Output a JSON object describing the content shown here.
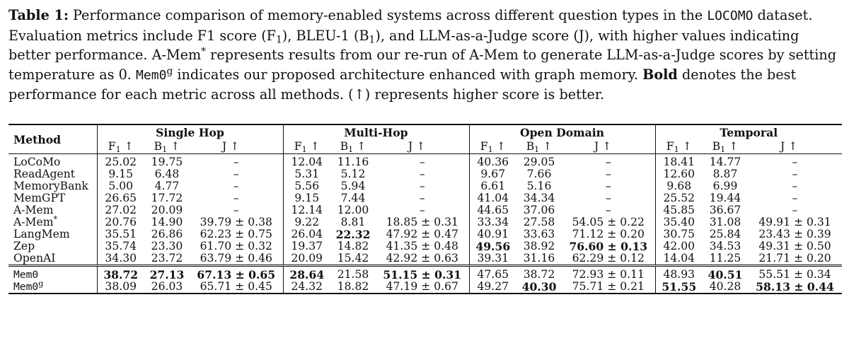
{
  "caption": {
    "label": "Table 1:",
    "s1": " Performance comparison of memory-enabled systems across different question types in the ",
    "dataset_name": "LOCOMO",
    "s2": " dataset. Evaluation metrics include F1 score (F",
    "s3": "), BLEU-1 (B",
    "s4": "), and LLM-as-a-Judge score (J), with higher values indicating better performance. A-Mem",
    "s5": " represents results from our re-run of A-Mem to generate LLM-as-a-Judge scores by setting temperature as 0. ",
    "mem0": "Mem0",
    "s6": " indicates our proposed architecture enhanced with graph memory. ",
    "bold_word": "Bold",
    "s7": " denotes the best performance for each metric across all methods. (↑) represents higher score is better.",
    "sub_one": "1",
    "star": "*",
    "sup_g": "g"
  },
  "table": {
    "method_header": "Method",
    "groups": [
      "Single Hop",
      "Multi-Hop",
      "Open Domain",
      "Temporal"
    ],
    "metric_f": "F",
    "metric_b": "B",
    "metric_sub": "1",
    "arrow": " ↑",
    "metric_j": "J ↑",
    "rows_a": [
      {
        "name": "LoCoMo",
        "cells": [
          "25.02",
          "19.75",
          "–",
          "12.04",
          "11.16",
          "–",
          "40.36",
          "29.05",
          "–",
          "18.41",
          "14.77",
          "–"
        ]
      },
      {
        "name": "ReadAgent",
        "cells": [
          "9.15",
          "6.48",
          "–",
          "5.31",
          "5.12",
          "–",
          "9.67",
          "7.66",
          "–",
          "12.60",
          "8.87",
          "–"
        ]
      },
      {
        "name": "MemoryBank",
        "cells": [
          "5.00",
          "4.77",
          "–",
          "5.56",
          "5.94",
          "–",
          "6.61",
          "5.16",
          "–",
          "9.68",
          "6.99",
          "–"
        ]
      },
      {
        "name": "MemGPT",
        "cells": [
          "26.65",
          "17.72",
          "–",
          "9.15",
          "7.44",
          "–",
          "41.04",
          "34.34",
          "–",
          "25.52",
          "19.44",
          "–"
        ]
      },
      {
        "name": "A-Mem",
        "cells": [
          "27.02",
          "20.09",
          "–",
          "12.14",
          "12.00",
          "–",
          "44.65",
          "37.06",
          "–",
          "45.85",
          "36.67",
          "–"
        ]
      },
      {
        "name": "A-Mem",
        "sup": "*",
        "cells": [
          "20.76",
          "14.90",
          "39.79 ± 0.38",
          "9.22",
          "8.81",
          "18.85 ± 0.31",
          "33.34",
          "27.58",
          "54.05 ± 0.22",
          "35.40",
          "31.08",
          "49.91 ± 0.31"
        ]
      },
      {
        "name": "LangMem",
        "cells": [
          "35.51",
          "26.86",
          "62.23 ± 0.75",
          "26.04",
          "22.32",
          "47.92 ± 0.47",
          "40.91",
          "33.63",
          "71.12 ± 0.20",
          "30.75",
          "25.84",
          "23.43 ± 0.39"
        ],
        "bold": [
          4
        ]
      },
      {
        "name": "Zep",
        "cells": [
          "35.74",
          "23.30",
          "61.70 ± 0.32",
          "19.37",
          "14.82",
          "41.35 ± 0.48",
          "49.56",
          "38.92",
          "76.60 ± 0.13",
          "42.00",
          "34.53",
          "49.31 ± 0.50"
        ],
        "bold": [
          6,
          8
        ]
      },
      {
        "name": "OpenAI",
        "cells": [
          "34.30",
          "23.72",
          "63.79 ± 0.46",
          "20.09",
          "15.42",
          "42.92 ± 0.63",
          "39.31",
          "31.16",
          "62.29 ± 0.12",
          "14.04",
          "11.25",
          "21.71 ± 0.20"
        ]
      }
    ],
    "rows_b": [
      {
        "name": "Mem0",
        "mono": true,
        "cells": [
          "38.72",
          "27.13",
          "67.13 ± 0.65",
          "28.64",
          "21.58",
          "51.15 ± 0.31",
          "47.65",
          "38.72",
          "72.93 ± 0.11",
          "48.93",
          "40.51",
          "55.51 ± 0.34"
        ],
        "bold": [
          0,
          1,
          2,
          3,
          5,
          10
        ]
      },
      {
        "name": "Mem0",
        "mono": true,
        "sup": "g",
        "cells": [
          "38.09",
          "26.03",
          "65.71 ± 0.45",
          "24.32",
          "18.82",
          "47.19 ± 0.67",
          "49.27",
          "40.30",
          "75.71 ± 0.21",
          "51.55",
          "40.28",
          "58.13 ± 0.44"
        ],
        "bold": [
          7,
          9,
          11
        ]
      }
    ]
  }
}
